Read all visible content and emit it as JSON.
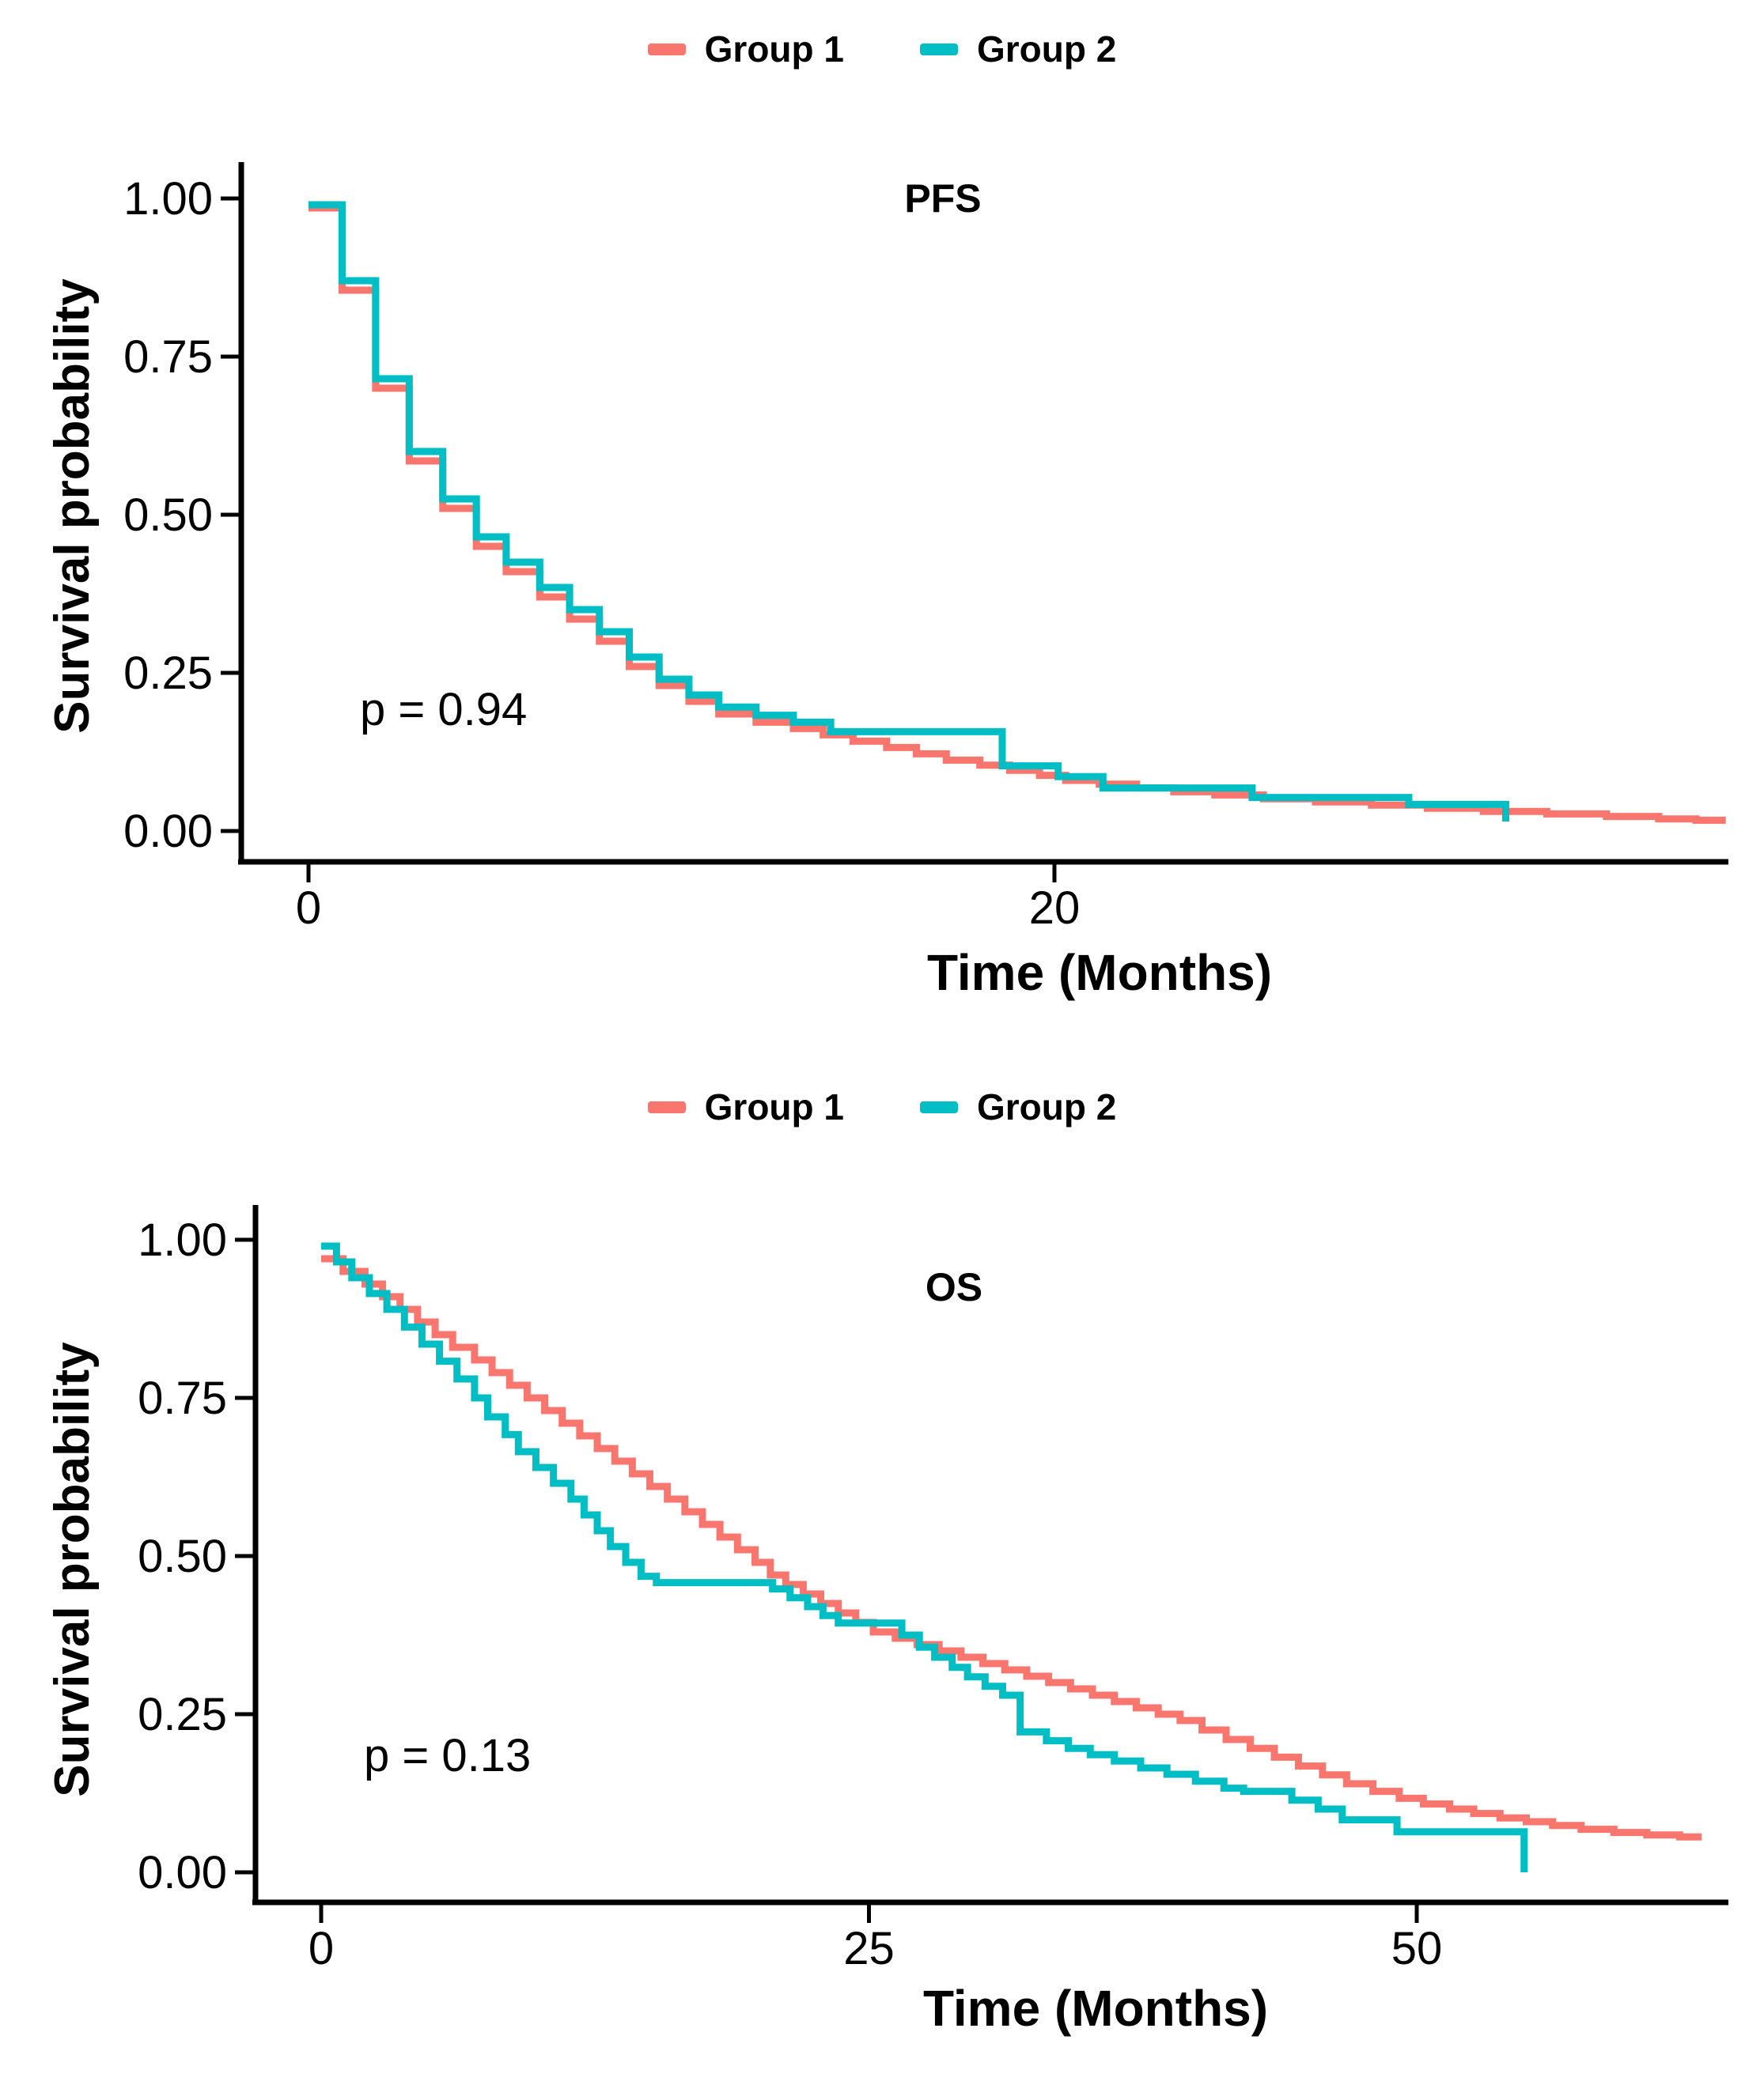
{
  "figure": {
    "background": "#ffffff",
    "axis_color": "#000000",
    "colors": {
      "group1": "#F8766D",
      "group2": "#00BEC4"
    }
  },
  "chart_data": [
    {
      "type": "line",
      "subtype": "kaplan-meier-step",
      "key": "pfs",
      "title": "PFS",
      "p_label": "p = 0.94",
      "xlabel": "Time (Months)",
      "ylabel": "Survival probability",
      "xlim": [
        0,
        38.5
      ],
      "ylim": [
        0,
        1
      ],
      "grid": false,
      "legend_position": "top-center",
      "x_ticks": [
        {
          "v": 0,
          "label": "0"
        },
        {
          "v": 20,
          "label": "20"
        }
      ],
      "y_ticks": [
        {
          "v": 1.0,
          "label": "1.00"
        },
        {
          "v": 0.75,
          "label": "0.75"
        },
        {
          "v": 0.5,
          "label": "0.50"
        },
        {
          "v": 0.25,
          "label": "0.25"
        },
        {
          "v": 0.0,
          "label": "0.00"
        }
      ],
      "series": [
        {
          "name": "Group 1",
          "color": "#F8766D",
          "end": 38.0,
          "steps": [
            [
              0,
              0.985
            ],
            [
              0.9,
              0.855
            ],
            [
              1.8,
              0.7
            ],
            [
              2.7,
              0.585
            ],
            [
              3.6,
              0.51
            ],
            [
              4.5,
              0.45
            ],
            [
              5.3,
              0.41
            ],
            [
              6.2,
              0.37
            ],
            [
              7.0,
              0.335
            ],
            [
              7.8,
              0.3
            ],
            [
              8.6,
              0.26
            ],
            [
              9.4,
              0.23
            ],
            [
              10.2,
              0.205
            ],
            [
              11.0,
              0.185
            ],
            [
              12.0,
              0.172
            ],
            [
              13.0,
              0.162
            ],
            [
              13.8,
              0.152
            ],
            [
              14.6,
              0.142
            ],
            [
              15.5,
              0.132
            ],
            [
              16.3,
              0.122
            ],
            [
              17.1,
              0.112
            ],
            [
              18.0,
              0.104
            ],
            [
              18.8,
              0.096
            ],
            [
              19.6,
              0.088
            ],
            [
              20.3,
              0.08
            ],
            [
              21.2,
              0.074
            ],
            [
              22.2,
              0.068
            ],
            [
              23.2,
              0.062
            ],
            [
              24.3,
              0.057
            ],
            [
              25.6,
              0.051
            ],
            [
              27.0,
              0.046
            ],
            [
              28.5,
              0.041
            ],
            [
              30.0,
              0.036
            ],
            [
              31.5,
              0.031
            ],
            [
              33.2,
              0.027
            ],
            [
              34.8,
              0.023
            ],
            [
              36.2,
              0.019
            ],
            [
              37.2,
              0.017
            ]
          ]
        },
        {
          "name": "Group 2",
          "color": "#00BEC4",
          "end": 32.1,
          "steps": [
            [
              0,
              0.99
            ],
            [
              0.9,
              0.87
            ],
            [
              1.8,
              0.715
            ],
            [
              2.7,
              0.6
            ],
            [
              3.6,
              0.525
            ],
            [
              4.5,
              0.465
            ],
            [
              5.3,
              0.425
            ],
            [
              6.2,
              0.385
            ],
            [
              7.0,
              0.35
            ],
            [
              7.8,
              0.315
            ],
            [
              8.6,
              0.275
            ],
            [
              9.4,
              0.24
            ],
            [
              10.2,
              0.215
            ],
            [
              11.0,
              0.196
            ],
            [
              12.0,
              0.183
            ],
            [
              13.0,
              0.172
            ],
            [
              14.0,
              0.157
            ],
            [
              18.6,
              0.103
            ],
            [
              20.1,
              0.086
            ],
            [
              21.3,
              0.068
            ],
            [
              25.3,
              0.053
            ],
            [
              29.5,
              0.042
            ],
            [
              32.1,
              0.015
            ]
          ]
        }
      ]
    },
    {
      "type": "line",
      "subtype": "kaplan-meier-step",
      "key": "os",
      "title": "OS",
      "p_label": "p = 0.13",
      "xlabel": "Time (Months)",
      "ylabel": "Survival probability",
      "xlim": [
        0,
        64
      ],
      "ylim": [
        0,
        1
      ],
      "grid": false,
      "legend_position": "top-center",
      "x_ticks": [
        {
          "v": 0,
          "label": "0"
        },
        {
          "v": 25,
          "label": "25"
        },
        {
          "v": 50,
          "label": "50"
        }
      ],
      "y_ticks": [
        {
          "v": 1.0,
          "label": "1.00"
        },
        {
          "v": 0.75,
          "label": "0.75"
        },
        {
          "v": 0.5,
          "label": "0.50"
        },
        {
          "v": 0.25,
          "label": "0.25"
        },
        {
          "v": 0.0,
          "label": "0.00"
        }
      ],
      "series": [
        {
          "name": "Group 1",
          "color": "#F8766D",
          "end": 63.0,
          "steps": [
            [
              0,
              0.97
            ],
            [
              1,
              0.95
            ],
            [
              2,
              0.93
            ],
            [
              2.8,
              0.91
            ],
            [
              3.6,
              0.89
            ],
            [
              4.4,
              0.87
            ],
            [
              5.2,
              0.85
            ],
            [
              6,
              0.83
            ],
            [
              7,
              0.81
            ],
            [
              7.8,
              0.79
            ],
            [
              8.6,
              0.77
            ],
            [
              9.4,
              0.75
            ],
            [
              10.2,
              0.73
            ],
            [
              11,
              0.71
            ],
            [
              11.8,
              0.69
            ],
            [
              12.6,
              0.67
            ],
            [
              13.4,
              0.65
            ],
            [
              14.2,
              0.63
            ],
            [
              15,
              0.61
            ],
            [
              15.8,
              0.59
            ],
            [
              16.6,
              0.57
            ],
            [
              17.4,
              0.55
            ],
            [
              18.2,
              0.53
            ],
            [
              19,
              0.51
            ],
            [
              19.8,
              0.49
            ],
            [
              20.5,
              0.47
            ],
            [
              21.2,
              0.455
            ],
            [
              22,
              0.44
            ],
            [
              22.8,
              0.425
            ],
            [
              23.6,
              0.41
            ],
            [
              24.4,
              0.395
            ],
            [
              25.2,
              0.38
            ],
            [
              26.2,
              0.37
            ],
            [
              27.2,
              0.36
            ],
            [
              28.2,
              0.35
            ],
            [
              29.2,
              0.34
            ],
            [
              30.2,
              0.33
            ],
            [
              31.2,
              0.32
            ],
            [
              32.2,
              0.31
            ],
            [
              33.2,
              0.3
            ],
            [
              34.2,
              0.29
            ],
            [
              35.2,
              0.28
            ],
            [
              36.2,
              0.27
            ],
            [
              37.2,
              0.26
            ],
            [
              38.2,
              0.25
            ],
            [
              39.2,
              0.24
            ],
            [
              40.2,
              0.225
            ],
            [
              41.3,
              0.21
            ],
            [
              42.4,
              0.196
            ],
            [
              43.5,
              0.182
            ],
            [
              44.6,
              0.168
            ],
            [
              45.7,
              0.154
            ],
            [
              46.8,
              0.14
            ],
            [
              48,
              0.128
            ],
            [
              49.2,
              0.117
            ],
            [
              50.3,
              0.108
            ],
            [
              51.5,
              0.1
            ],
            [
              52.6,
              0.093
            ],
            [
              53.8,
              0.086
            ],
            [
              55,
              0.08
            ],
            [
              56.2,
              0.074
            ],
            [
              57.5,
              0.068
            ],
            [
              59,
              0.063
            ],
            [
              60.5,
              0.059
            ],
            [
              62,
              0.056
            ]
          ]
        },
        {
          "name": "Group 2",
          "color": "#00BEC4",
          "end": 54.9,
          "steps": [
            [
              0,
              0.99
            ],
            [
              0.7,
              0.965
            ],
            [
              1.4,
              0.94
            ],
            [
              2.2,
              0.915
            ],
            [
              3.0,
              0.89
            ],
            [
              3.8,
              0.862
            ],
            [
              4.6,
              0.835
            ],
            [
              5.4,
              0.808
            ],
            [
              6.2,
              0.78
            ],
            [
              7.0,
              0.75
            ],
            [
              7.6,
              0.72
            ],
            [
              8.4,
              0.692
            ],
            [
              9.0,
              0.665
            ],
            [
              9.8,
              0.64
            ],
            [
              10.6,
              0.615
            ],
            [
              11.4,
              0.59
            ],
            [
              12.0,
              0.565
            ],
            [
              12.6,
              0.54
            ],
            [
              13.2,
              0.515
            ],
            [
              13.9,
              0.49
            ],
            [
              14.6,
              0.468
            ],
            [
              15.3,
              0.458
            ],
            [
              20.6,
              0.448
            ],
            [
              21.4,
              0.434
            ],
            [
              22.2,
              0.42
            ],
            [
              22.9,
              0.406
            ],
            [
              23.6,
              0.394
            ],
            [
              26.5,
              0.375
            ],
            [
              27.3,
              0.356
            ],
            [
              28.0,
              0.34
            ],
            [
              28.8,
              0.324
            ],
            [
              29.5,
              0.309
            ],
            [
              30.3,
              0.294
            ],
            [
              31.1,
              0.28
            ],
            [
              31.9,
              0.222
            ],
            [
              33.1,
              0.208
            ],
            [
              34.1,
              0.196
            ],
            [
              35.1,
              0.186
            ],
            [
              36.2,
              0.176
            ],
            [
              37.4,
              0.165
            ],
            [
              38.6,
              0.155
            ],
            [
              39.9,
              0.144
            ],
            [
              41.2,
              0.133
            ],
            [
              42.1,
              0.128
            ],
            [
              44.3,
              0.114
            ],
            [
              45.5,
              0.1
            ],
            [
              46.6,
              0.083
            ],
            [
              49.1,
              0.064
            ],
            [
              54.9,
              0.0
            ]
          ]
        }
      ]
    }
  ]
}
